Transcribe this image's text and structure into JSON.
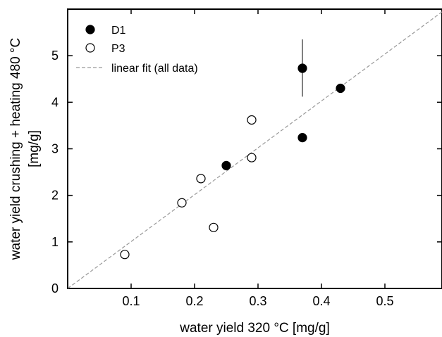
{
  "chart_data": {
    "type": "scatter",
    "title": "",
    "xlabel": "water yield 320 °C [mg/g]",
    "ylabel_lines": [
      "water yield crushing + heating 480 °C",
      "[mg/g]"
    ],
    "xlim": [
      0,
      0.59
    ],
    "ylim": [
      0,
      6.0
    ],
    "x_ticks": [
      0.1,
      0.2,
      0.3,
      0.4,
      0.5
    ],
    "x_tick_labels": [
      "0.1",
      "0.2",
      "0.3",
      "0.4",
      "0.5"
    ],
    "y_ticks": [
      0,
      1,
      2,
      3,
      4,
      5
    ],
    "y_tick_labels": [
      "0",
      "1",
      "2",
      "3",
      "4",
      "5"
    ],
    "grid": false,
    "legend_position": "top-left",
    "series": [
      {
        "name": "D1",
        "marker": "filled-circle",
        "color": "#000000",
        "points": [
          {
            "x": 0.25,
            "y": 2.64
          },
          {
            "x": 0.37,
            "y": 3.24
          },
          {
            "x": 0.37,
            "y": 4.73,
            "yerr_low": 4.12,
            "yerr_high": 5.35
          },
          {
            "x": 0.43,
            "y": 4.3
          }
        ]
      },
      {
        "name": "P3",
        "marker": "open-circle",
        "color": "#000000",
        "points": [
          {
            "x": 0.09,
            "y": 0.73
          },
          {
            "x": 0.18,
            "y": 1.84
          },
          {
            "x": 0.21,
            "y": 2.36
          },
          {
            "x": 0.23,
            "y": 1.31
          },
          {
            "x": 0.29,
            "y": 2.81
          },
          {
            "x": 0.29,
            "y": 3.62
          }
        ]
      }
    ],
    "fit": {
      "name": "linear fit (all data)",
      "style": "dashed",
      "color": "#999999",
      "slope": 10.07,
      "intercept": 0
    }
  }
}
